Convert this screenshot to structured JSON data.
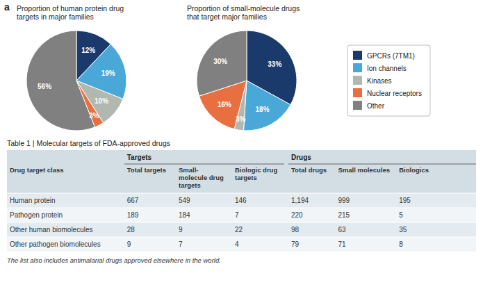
{
  "panel_label": "a",
  "chart_data": [
    {
      "type": "pie",
      "title": "Proportion of human protein drug\ntargets in major families",
      "categories": [
        "GPCRs (7TM1)",
        "Ion channels",
        "Kinases",
        "Nuclear receptors",
        "Other"
      ],
      "values": [
        12,
        19,
        10,
        3,
        56
      ],
      "value_labels": [
        "12%",
        "19%",
        "10%",
        "3%",
        "56%"
      ],
      "colors": [
        "#1a3a6b",
        "#4aa8d8",
        "#b0b8b0",
        "#e87040",
        "#808080"
      ],
      "data_labels": true,
      "legend": "right"
    },
    {
      "type": "pie",
      "title": "Proportion of small-molecule drugs\nthat target major families",
      "categories": [
        "GPCRs (7TM1)",
        "Ion channels",
        "Kinases",
        "Nuclear receptors",
        "Other"
      ],
      "values": [
        33,
        18,
        3,
        16,
        30
      ],
      "value_labels": [
        "33%",
        "18%",
        "3%",
        "16%",
        "30%"
      ],
      "colors": [
        "#1a3a6b",
        "#4aa8d8",
        "#b0b8b0",
        "#e87040",
        "#808080"
      ],
      "data_labels": true
    },
    {
      "type": "table",
      "title": "Table 1 | Molecular targets of FDA-approved drugs",
      "column_groups": [
        "Targets",
        "Drugs"
      ],
      "columns": [
        "Drug target class",
        "Total targets",
        "Small-\nmolecule drug\ntargets",
        "Biologic drug targets",
        "Total drugs",
        "Small molecules",
        "Biologics"
      ],
      "rows": [
        [
          "Human protein",
          "667",
          "549",
          "146",
          "1,194",
          "999",
          "195"
        ],
        [
          "Pathogen protein",
          "189",
          "184",
          "7",
          "220",
          "215",
          "5"
        ],
        [
          "Other human biomolecules",
          "28",
          "9",
          "22",
          "98",
          "63",
          "35"
        ],
        [
          "Other pathogen biomolecules",
          "9",
          "7",
          "4",
          "79",
          "71",
          "8"
        ]
      ],
      "footnote": "The list also includes antimalarial drugs approved elsewhere in the world."
    }
  ]
}
